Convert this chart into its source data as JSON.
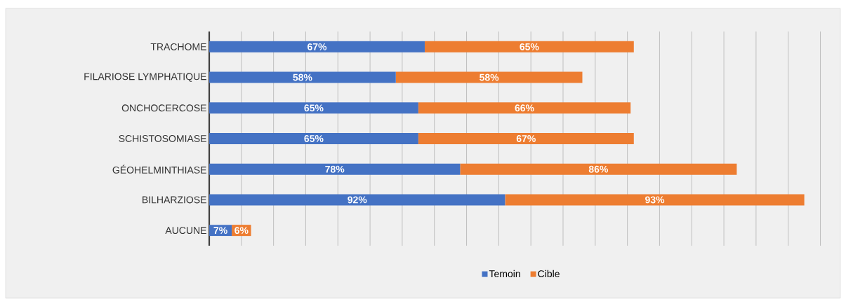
{
  "chart_data": {
    "type": "bar",
    "orientation": "horizontal",
    "stacked": true,
    "categories": [
      "TRACHOME",
      "FILARIOSE LYMPHATIQUE",
      "ONCHOCERCOSE",
      "SCHISTOSOMIASE",
      "GÉOHELMINTHIASE",
      "BILHARZIOSE",
      "AUCUNE"
    ],
    "series": [
      {
        "name": "Temoin",
        "color": "#4472c4",
        "values": [
          67,
          58,
          65,
          65,
          78,
          92,
          7
        ],
        "value_labels": [
          "67%",
          "58%",
          "65%",
          "65%",
          "78%",
          "92%",
          "7%"
        ]
      },
      {
        "name": "Cible",
        "color": "#ed7d31",
        "values": [
          65,
          58,
          66,
          67,
          86,
          93,
          6
        ],
        "value_labels": [
          "65%",
          "58%",
          "66%",
          "67%",
          "86%",
          "93%",
          "6%"
        ]
      }
    ],
    "grid": "x",
    "legend": "bottom",
    "tick_labels": "y"
  }
}
